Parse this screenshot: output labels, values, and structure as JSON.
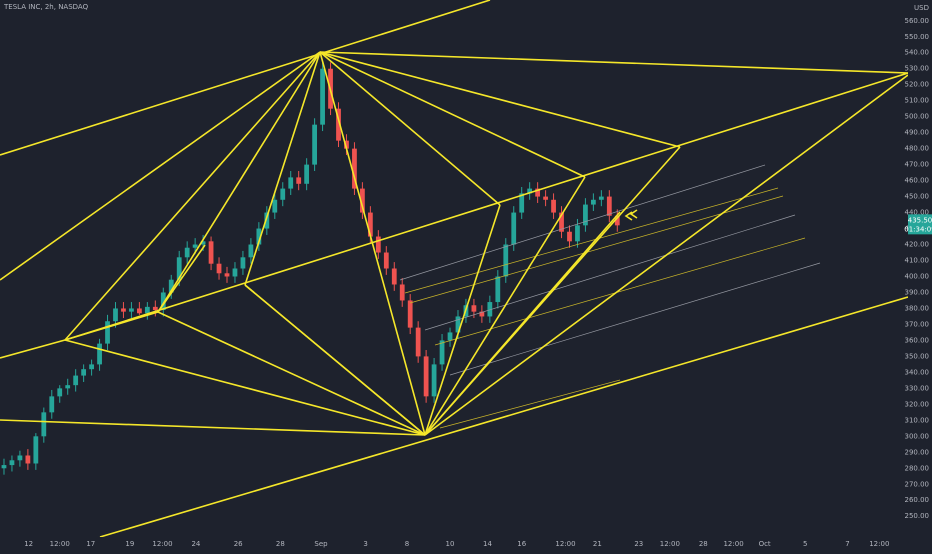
{
  "chart_data": {
    "type": "candlestick",
    "title": "TESLA INC, 2h, NASDAQ",
    "currency": "USD",
    "up_color": "#26a69a",
    "down_color": "#ef5350",
    "last_price_label": "435.50",
    "countdown_label": "01:34:09",
    "open": [
      280,
      282,
      285,
      288,
      283,
      300,
      315,
      325,
      330,
      332,
      338,
      342,
      345,
      358,
      372,
      380,
      378,
      380,
      377,
      381,
      379,
      390,
      398,
      412,
      418,
      420,
      422,
      408,
      402,
      400,
      405,
      412,
      420,
      430,
      440,
      448,
      455,
      462,
      458,
      470,
      495,
      530,
      505,
      485,
      480,
      455,
      440,
      425,
      415,
      405,
      395,
      385,
      368,
      350,
      325,
      345,
      360,
      365,
      375,
      382,
      378,
      375,
      384,
      400,
      420,
      440,
      452,
      455,
      450,
      448,
      440,
      428,
      422,
      432,
      445,
      448,
      450,
      438
    ],
    "high": [
      286,
      288,
      291,
      292,
      302,
      318,
      329,
      332,
      336,
      342,
      345,
      348,
      361,
      376,
      384,
      384,
      384,
      384,
      384,
      385,
      393,
      401,
      416,
      422,
      424,
      426,
      425,
      412,
      406,
      409,
      416,
      424,
      434,
      444,
      452,
      459,
      466,
      466,
      474,
      499,
      534,
      534,
      509,
      489,
      484,
      459,
      444,
      429,
      419,
      409,
      399,
      389,
      372,
      354,
      349,
      364,
      368,
      379,
      386,
      386,
      382,
      388,
      404,
      424,
      444,
      456,
      459,
      459,
      454,
      452,
      444,
      432,
      436,
      449,
      452,
      454,
      454,
      442
    ],
    "low": [
      276,
      278,
      281,
      279,
      279,
      296,
      311,
      321,
      326,
      328,
      334,
      338,
      341,
      354,
      368,
      374,
      374,
      376,
      373,
      375,
      375,
      386,
      394,
      408,
      414,
      416,
      404,
      398,
      396,
      396,
      401,
      408,
      416,
      426,
      436,
      444,
      451,
      454,
      454,
      466,
      491,
      501,
      481,
      476,
      451,
      436,
      421,
      411,
      401,
      391,
      381,
      364,
      346,
      321,
      321,
      341,
      356,
      361,
      371,
      374,
      371,
      371,
      380,
      396,
      416,
      436,
      448,
      446,
      444,
      436,
      424,
      418,
      418,
      428,
      441,
      444,
      434,
      428
    ],
    "close": [
      282,
      285,
      288,
      283,
      300,
      315,
      325,
      330,
      332,
      338,
      342,
      345,
      358,
      372,
      380,
      378,
      380,
      377,
      381,
      379,
      390,
      398,
      412,
      418,
      420,
      422,
      408,
      402,
      400,
      405,
      412,
      420,
      430,
      440,
      448,
      455,
      462,
      458,
      470,
      495,
      530,
      505,
      485,
      480,
      455,
      440,
      425,
      415,
      405,
      395,
      385,
      368,
      350,
      325,
      345,
      360,
      365,
      375,
      382,
      378,
      375,
      384,
      400,
      420,
      440,
      452,
      455,
      450,
      448,
      440,
      428,
      422,
      432,
      445,
      448,
      450,
      438,
      432
    ],
    "xlim": [
      0,
      114
    ],
    "ylim": [
      237,
      573
    ],
    "xticks": [
      {
        "value": 3.6,
        "label": "12"
      },
      {
        "value": 7.5,
        "label": "12:00"
      },
      {
        "value": 11.4,
        "label": "17"
      },
      {
        "value": 16.3,
        "label": "19"
      },
      {
        "value": 20.4,
        "label": "12:00"
      },
      {
        "value": 24.6,
        "label": "24"
      },
      {
        "value": 29.9,
        "label": "26"
      },
      {
        "value": 35.2,
        "label": "28"
      },
      {
        "value": 40.3,
        "label": "Sep"
      },
      {
        "value": 45.9,
        "label": "3"
      },
      {
        "value": 51.1,
        "label": "8"
      },
      {
        "value": 56.5,
        "label": "10"
      },
      {
        "value": 61.2,
        "label": "14"
      },
      {
        "value": 65.5,
        "label": "16"
      },
      {
        "value": 71,
        "label": "12:00"
      },
      {
        "value": 75,
        "label": "21"
      },
      {
        "value": 80.2,
        "label": "23"
      },
      {
        "value": 84.1,
        "label": "12:00"
      },
      {
        "value": 88.3,
        "label": "28"
      },
      {
        "value": 92.1,
        "label": "12:00"
      },
      {
        "value": 96,
        "label": "Oct"
      },
      {
        "value": 101.1,
        "label": "5"
      },
      {
        "value": 106.4,
        "label": "7"
      },
      {
        "value": 110.4,
        "label": "12:00"
      }
    ],
    "yticks": [
      {
        "value": 250,
        "label": "250.00"
      },
      {
        "value": 260,
        "label": "260.00"
      },
      {
        "value": 270,
        "label": "270.00"
      },
      {
        "value": 280,
        "label": "280.00"
      },
      {
        "value": 290,
        "label": "290.00"
      },
      {
        "value": 300,
        "label": "300.00"
      },
      {
        "value": 310,
        "label": "310.00"
      },
      {
        "value": 320,
        "label": "320.00"
      },
      {
        "value": 330,
        "label": "330.00"
      },
      {
        "value": 340,
        "label": "340.00"
      },
      {
        "value": 350,
        "label": "350.00"
      },
      {
        "value": 360,
        "label": "360.00"
      },
      {
        "value": 370,
        "label": "370.00"
      },
      {
        "value": 380,
        "label": "380.00"
      },
      {
        "value": 390,
        "label": "390.00"
      },
      {
        "value": 400,
        "label": "400.00"
      },
      {
        "value": 410,
        "label": "410.00"
      },
      {
        "value": 420,
        "label": "420.00"
      },
      {
        "value": 430,
        "label": "430.00"
      },
      {
        "value": 440,
        "label": "440.00"
      },
      {
        "value": 450,
        "label": "450.00"
      },
      {
        "value": 460,
        "label": "460.00"
      },
      {
        "value": 470,
        "label": "470.00"
      },
      {
        "value": 480,
        "label": "480.00"
      },
      {
        "value": 490,
        "label": "490.00"
      },
      {
        "value": 500,
        "label": "500.00"
      },
      {
        "value": 510,
        "label": "510.00"
      },
      {
        "value": 520,
        "label": "520.00"
      },
      {
        "value": 530,
        "label": "530.00"
      },
      {
        "value": 540,
        "label": "540.00"
      },
      {
        "value": 550,
        "label": "550.00"
      },
      {
        "value": 560,
        "label": "560.00"
      }
    ]
  }
}
